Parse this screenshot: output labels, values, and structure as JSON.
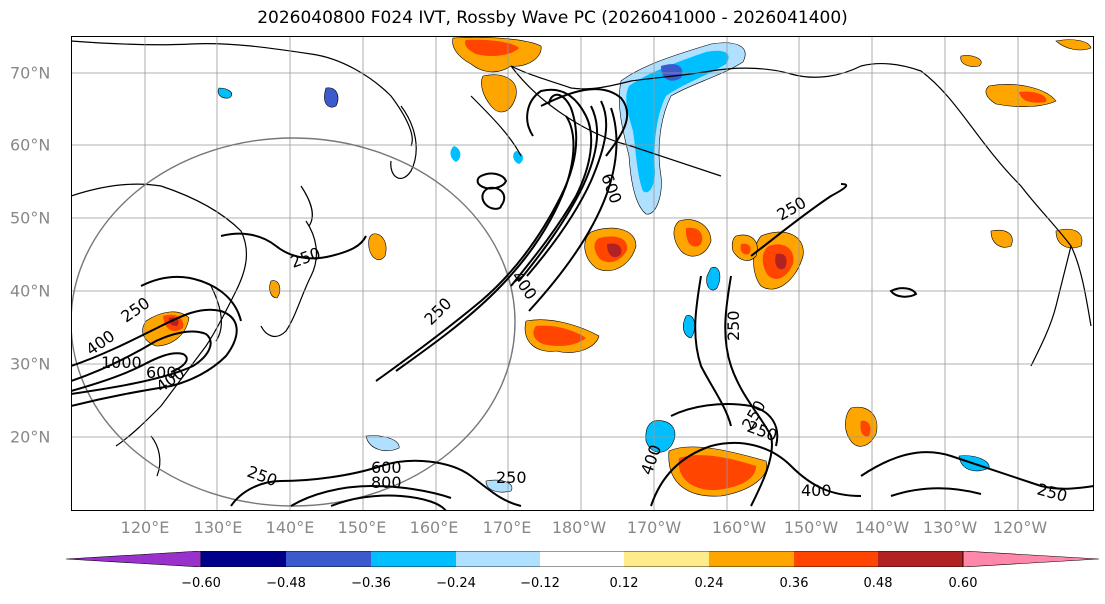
{
  "title": "2026040800 F024 IVT, Rossby Wave PC (2026041000 - 2026041400)",
  "lat_labels": [
    "70°N",
    "60°N",
    "50°N",
    "40°N",
    "30°N",
    "20°N"
  ],
  "lon_labels": [
    "120°E",
    "130°E",
    "140°E",
    "150°E",
    "160°E",
    "170°E",
    "180°W",
    "170°W",
    "160°W",
    "150°W",
    "140°W",
    "130°W",
    "120°W"
  ],
  "colorbar": {
    "tick_labels": [
      "−0.60",
      "−0.48",
      "−0.36",
      "−0.24",
      "−0.12",
      "0.12",
      "0.24",
      "0.36",
      "0.48",
      "0.60"
    ],
    "colors": [
      "#9932CC",
      "#00008B",
      "#3A5ACD",
      "#00BFFF",
      "#B0E0FF",
      "#FFFFFF",
      "#FFEB8A",
      "#FFA500",
      "#FF4500",
      "#B22222",
      "#FF88AA"
    ]
  },
  "contour_labels": [
    "250",
    "400",
    "600",
    "250",
    "250",
    "250",
    "250",
    "250",
    "400",
    "600",
    "800",
    "250",
    "400",
    "1000",
    "600",
    "400",
    "400",
    "250",
    "250",
    "250"
  ],
  "colors": {
    "pos_light": "#FFEB8A",
    "pos_mid": "#FFA500",
    "pos_strong": "#FF4500",
    "pos_max": "#B22222",
    "neg_light": "#B0E0FF",
    "neg_mid": "#00BFFF",
    "neg_strong": "#3A5ACD"
  }
}
